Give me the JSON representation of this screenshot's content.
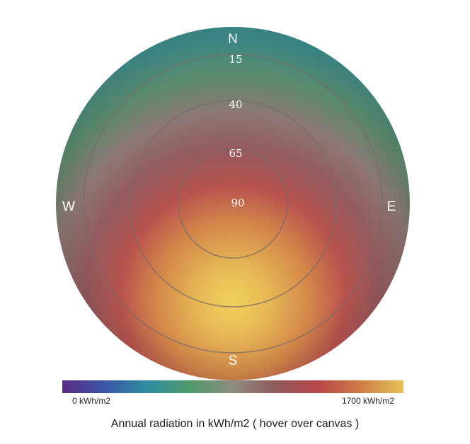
{
  "chart_data": {
    "type": "heatmap",
    "projection": "polar sky dome",
    "compass": {
      "north": "N",
      "south": "S",
      "east": "E",
      "west": "W"
    },
    "elevation_rings": [
      15,
      40,
      65,
      90
    ],
    "ring_labels": [
      "15",
      "40",
      "65",
      "90"
    ],
    "value_range": [
      0,
      1700
    ],
    "value_unit": "kWh/m2",
    "colormap": [
      "#5b2c83",
      "#3b56a8",
      "#2f8ea0",
      "#4f9a6a",
      "#8f8c80",
      "#8f5a5c",
      "#b8464a",
      "#cf7d48",
      "#e4c456"
    ]
  },
  "legend": {
    "min_label": "0 kWh/m2",
    "max_label": "1700  kWh/m2"
  },
  "caption": "Annual radiation in kWh/m2 ( hover over canvas )"
}
